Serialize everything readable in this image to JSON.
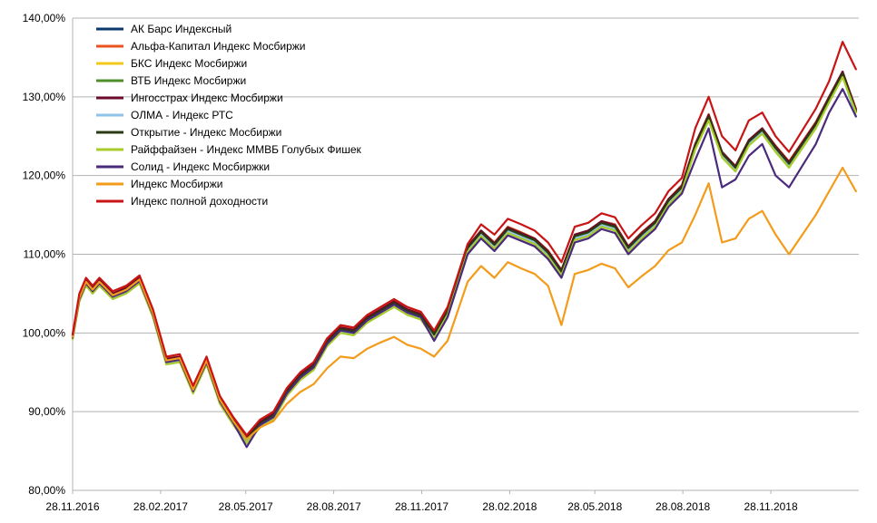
{
  "chart_data": {
    "type": "line",
    "title": "",
    "xlabel": "",
    "ylabel": "",
    "ylim": [
      80,
      140
    ],
    "y_ticks": [
      80,
      90,
      100,
      110,
      120,
      130,
      140
    ],
    "y_tick_labels": [
      "80,00%",
      "90,00%",
      "100,00%",
      "110,00%",
      "120,00%",
      "130,00%",
      "140,00%"
    ],
    "x_tick_labels": [
      "28.11.2016",
      "28.02.2017",
      "28.05.2017",
      "28.08.2017",
      "28.11.2017",
      "28.02.2018",
      "28.05.2018",
      "28.08.2018",
      "28.11.2018"
    ],
    "x_range": [
      "28.11.2016",
      "28.02.2019"
    ],
    "grid": "horizontal",
    "legend_position": "top-left",
    "x": [
      "28.11.2016",
      "05.12.2016",
      "12.12.2016",
      "19.12.2016",
      "26.12.2016",
      "09.01.2017",
      "23.01.2017",
      "06.02.2017",
      "20.02.2017",
      "06.03.2017",
      "20.03.2017",
      "03.04.2017",
      "17.04.2017",
      "01.05.2017",
      "15.05.2017",
      "29.05.2017",
      "12.06.2017",
      "26.06.2017",
      "10.07.2017",
      "24.07.2017",
      "07.08.2017",
      "21.08.2017",
      "04.09.2017",
      "18.09.2017",
      "02.10.2017",
      "16.10.2017",
      "30.10.2017",
      "13.11.2017",
      "27.11.2017",
      "11.12.2017",
      "25.12.2017",
      "15.01.2018",
      "29.01.2018",
      "12.02.2018",
      "26.02.2018",
      "12.03.2018",
      "26.03.2018",
      "09.04.2018",
      "23.04.2018",
      "07.05.2018",
      "21.05.2018",
      "04.06.2018",
      "18.06.2018",
      "02.07.2018",
      "16.07.2018",
      "30.07.2018",
      "13.08.2018",
      "27.08.2018",
      "10.09.2018",
      "24.09.2018",
      "08.10.2018",
      "22.10.2018",
      "05.11.2018",
      "19.11.2018",
      "03.12.2018",
      "17.12.2018",
      "14.01.2019",
      "28.01.2019",
      "11.02.2019",
      "25.02.2019"
    ],
    "series": [
      {
        "name": "АК Барс Индексный",
        "color": "#0a3a6b",
        "values": [
          99.5,
          104.5,
          106.5,
          105.5,
          106.5,
          104.8,
          105.5,
          106.8,
          102.5,
          96.5,
          96.8,
          92.8,
          96.5,
          91.5,
          88.8,
          86.5,
          88.5,
          89.5,
          92.5,
          94.5,
          95.8,
          98.8,
          100.5,
          100.2,
          101.8,
          102.8,
          103.8,
          102.8,
          102.2,
          99.8,
          102.8,
          110.8,
          112.8,
          111.2,
          113.2,
          112.5,
          111.8,
          110.2,
          107.8,
          112.3,
          112.8,
          114.0,
          113.5,
          110.8,
          112.5,
          114.0,
          116.8,
          118.5,
          123.8,
          127.5,
          122.8,
          121.0,
          124.3,
          125.8,
          123.5,
          121.5,
          126.5,
          129.8,
          133.0,
          128.2
        ]
      },
      {
        "name": "Альфа-Капитал Индекс Мосбиржи",
        "color": "#e8531f",
        "values": [
          99.8,
          104.8,
          106.8,
          105.8,
          106.8,
          105.0,
          105.8,
          107.0,
          102.8,
          96.8,
          97.0,
          93.0,
          96.8,
          91.8,
          89.0,
          86.8,
          88.8,
          89.8,
          92.8,
          94.8,
          96.0,
          99.0,
          100.8,
          100.5,
          102.0,
          103.0,
          104.0,
          103.0,
          102.5,
          100.0,
          103.0,
          111.0,
          113.0,
          111.5,
          113.5,
          112.8,
          112.0,
          110.5,
          108.0,
          112.5,
          113.0,
          114.2,
          113.8,
          111.0,
          112.8,
          114.2,
          117.0,
          118.8,
          124.0,
          127.8,
          123.0,
          121.2,
          124.5,
          126.0,
          123.8,
          121.8,
          126.8,
          130.0,
          133.2,
          128.5
        ]
      },
      {
        "name": "БКС Индекс Мосбиржи",
        "color": "#f2c81a",
        "values": [
          99.6,
          104.6,
          106.6,
          105.6,
          106.6,
          104.9,
          105.6,
          106.9,
          102.6,
          96.6,
          96.9,
          92.9,
          96.6,
          91.6,
          88.9,
          86.6,
          88.6,
          89.6,
          92.6,
          94.6,
          95.9,
          98.9,
          100.6,
          100.3,
          101.9,
          102.9,
          103.9,
          102.9,
          102.3,
          99.9,
          102.9,
          110.9,
          112.9,
          111.3,
          113.3,
          112.6,
          111.9,
          110.3,
          107.9,
          112.4,
          112.9,
          114.1,
          113.6,
          110.9,
          112.6,
          114.1,
          116.9,
          118.6,
          123.9,
          127.6,
          122.9,
          121.1,
          124.4,
          125.9,
          123.6,
          121.6,
          126.6,
          129.9,
          133.1,
          128.3
        ]
      },
      {
        "name": "ВТБ Индекс Мосбиржи",
        "color": "#4f8f2a",
        "values": [
          99.4,
          104.4,
          106.4,
          105.4,
          106.4,
          104.7,
          105.4,
          106.7,
          102.4,
          96.4,
          96.7,
          92.7,
          96.4,
          91.4,
          88.7,
          86.4,
          88.4,
          89.4,
          92.4,
          94.4,
          95.7,
          98.7,
          100.4,
          100.1,
          101.7,
          102.7,
          103.7,
          102.7,
          102.1,
          99.7,
          102.7,
          110.7,
          112.7,
          111.1,
          113.1,
          112.4,
          111.7,
          110.1,
          107.7,
          112.2,
          112.7,
          113.9,
          113.4,
          110.7,
          112.4,
          113.9,
          116.7,
          118.4,
          123.7,
          127.4,
          122.7,
          120.9,
          124.2,
          125.7,
          123.4,
          121.4,
          126.4,
          129.7,
          132.9,
          128.1
        ]
      },
      {
        "name": "Ингосстрах Индекс Мосбиржи",
        "color": "#6b0a2a",
        "values": [
          99.7,
          104.7,
          106.7,
          105.7,
          106.7,
          105.0,
          105.7,
          107.0,
          102.7,
          96.7,
          97.0,
          93.0,
          96.7,
          91.7,
          89.0,
          86.7,
          88.7,
          89.7,
          92.7,
          94.7,
          96.0,
          99.0,
          100.7,
          100.4,
          102.0,
          103.0,
          104.0,
          103.0,
          102.4,
          100.0,
          103.0,
          111.0,
          113.0,
          111.4,
          113.4,
          112.7,
          112.0,
          110.4,
          108.0,
          112.5,
          113.0,
          114.2,
          113.7,
          111.0,
          112.7,
          114.2,
          117.0,
          118.7,
          124.0,
          127.7,
          123.0,
          121.2,
          124.5,
          126.0,
          123.7,
          121.7,
          126.7,
          130.0,
          133.2,
          128.4
        ]
      },
      {
        "name": "ОЛМА - Индекс РТС",
        "color": "#8fc3e8",
        "values": [
          99.3,
          104.2,
          106.2,
          105.2,
          106.2,
          104.5,
          105.2,
          106.5,
          102.2,
          96.2,
          96.5,
          92.5,
          96.2,
          91.2,
          88.5,
          86.2,
          88.2,
          89.2,
          92.2,
          94.2,
          95.5,
          98.5,
          100.2,
          99.9,
          101.5,
          102.5,
          103.5,
          102.5,
          101.9,
          99.5,
          102.5,
          110.5,
          112.5,
          110.9,
          112.9,
          112.2,
          111.5,
          109.9,
          107.5,
          112.0,
          112.5,
          113.7,
          113.2,
          110.5,
          112.2,
          113.7,
          116.5,
          118.2,
          123.5,
          127.2,
          122.5,
          120.7,
          124.0,
          125.5,
          123.2,
          121.2,
          126.2,
          129.5,
          132.7,
          127.5
        ]
      },
      {
        "name": "Открытие - Индекс Мосбиржи",
        "color": "#2b3a12",
        "values": [
          99.5,
          104.5,
          106.5,
          105.5,
          106.5,
          104.8,
          105.5,
          106.8,
          102.5,
          96.5,
          96.8,
          92.8,
          96.5,
          91.5,
          88.8,
          86.5,
          88.5,
          89.5,
          92.5,
          94.5,
          95.8,
          98.8,
          100.5,
          100.2,
          101.8,
          102.8,
          103.8,
          102.8,
          102.2,
          99.8,
          102.8,
          110.8,
          112.8,
          111.2,
          113.2,
          112.5,
          111.8,
          110.2,
          107.8,
          112.3,
          112.8,
          114.0,
          113.5,
          110.8,
          112.5,
          114.0,
          116.8,
          118.5,
          123.8,
          127.5,
          122.8,
          121.0,
          124.3,
          125.8,
          123.5,
          121.5,
          126.5,
          129.8,
          133.0,
          128.2
        ]
      },
      {
        "name": "Райффайзен - Индекс ММВБ Голубых Фишек",
        "color": "#a8cc2a",
        "values": [
          99.2,
          104.0,
          106.0,
          105.0,
          106.0,
          104.3,
          105.0,
          106.3,
          102.0,
          96.0,
          96.3,
          92.3,
          96.0,
          91.0,
          88.3,
          86.0,
          88.0,
          89.0,
          92.0,
          94.0,
          95.3,
          98.3,
          100.0,
          99.7,
          101.3,
          102.3,
          103.3,
          102.3,
          101.7,
          99.3,
          102.3,
          110.3,
          112.3,
          110.7,
          112.7,
          112.0,
          111.3,
          109.7,
          107.3,
          111.8,
          112.3,
          113.5,
          113.0,
          110.3,
          112.0,
          113.5,
          116.3,
          118.0,
          123.3,
          127.0,
          122.3,
          120.5,
          123.8,
          125.3,
          123.0,
          121.0,
          126.0,
          129.3,
          132.5,
          128.0
        ]
      },
      {
        "name": "Солид - Индекс Мосбиржки",
        "color": "#4a2a7a",
        "values": [
          99.4,
          104.3,
          106.3,
          105.3,
          106.3,
          104.6,
          105.3,
          106.6,
          102.3,
          96.3,
          96.6,
          92.6,
          96.3,
          91.3,
          88.6,
          85.5,
          88.3,
          89.3,
          92.3,
          94.3,
          95.6,
          98.6,
          100.3,
          100.0,
          101.6,
          102.6,
          103.6,
          102.6,
          102.0,
          99.0,
          102.0,
          110.0,
          112.0,
          110.4,
          112.4,
          111.7,
          111.0,
          109.4,
          107.0,
          111.5,
          112.0,
          113.2,
          112.7,
          110.0,
          111.7,
          113.2,
          116.0,
          117.7,
          122.0,
          126.0,
          118.5,
          119.5,
          122.5,
          124.0,
          120.0,
          118.5,
          124.0,
          128.0,
          131.0,
          127.5
        ]
      },
      {
        "name": "Индекс Мосбиржи",
        "color": "#f39b1a",
        "values": [
          99.5,
          104.5,
          106.5,
          105.5,
          106.5,
          104.8,
          105.5,
          106.8,
          102.5,
          96.5,
          96.8,
          92.8,
          96.5,
          91.5,
          88.8,
          86.5,
          88.0,
          88.8,
          91.0,
          92.5,
          93.5,
          95.5,
          97.0,
          96.8,
          98.0,
          98.8,
          99.5,
          98.5,
          98.0,
          97.0,
          99.0,
          106.5,
          108.5,
          107.0,
          109.0,
          108.2,
          107.5,
          106.0,
          101.0,
          107.5,
          108.0,
          108.8,
          108.2,
          105.8,
          107.2,
          108.5,
          110.5,
          111.5,
          115.0,
          119.0,
          111.5,
          112.0,
          114.5,
          115.5,
          112.5,
          110.0,
          115.0,
          118.0,
          121.0,
          118.0
        ]
      },
      {
        "name": "Индекс полной доходности",
        "color": "#c81414",
        "values": [
          99.8,
          105.0,
          107.0,
          106.0,
          107.0,
          105.3,
          106.0,
          107.3,
          103.0,
          97.0,
          97.3,
          93.3,
          97.0,
          92.0,
          89.3,
          87.0,
          89.0,
          90.0,
          93.0,
          95.0,
          96.3,
          99.3,
          101.0,
          100.7,
          102.3,
          103.3,
          104.3,
          103.3,
          102.7,
          100.3,
          103.3,
          111.3,
          113.8,
          112.5,
          114.5,
          113.8,
          113.0,
          111.5,
          109.0,
          113.5,
          114.0,
          115.2,
          114.7,
          112.0,
          113.7,
          115.2,
          118.0,
          119.7,
          126.0,
          130.0,
          125.0,
          123.2,
          127.0,
          128.0,
          125.0,
          123.0,
          128.5,
          132.0,
          137.0,
          133.5
        ]
      }
    ]
  }
}
